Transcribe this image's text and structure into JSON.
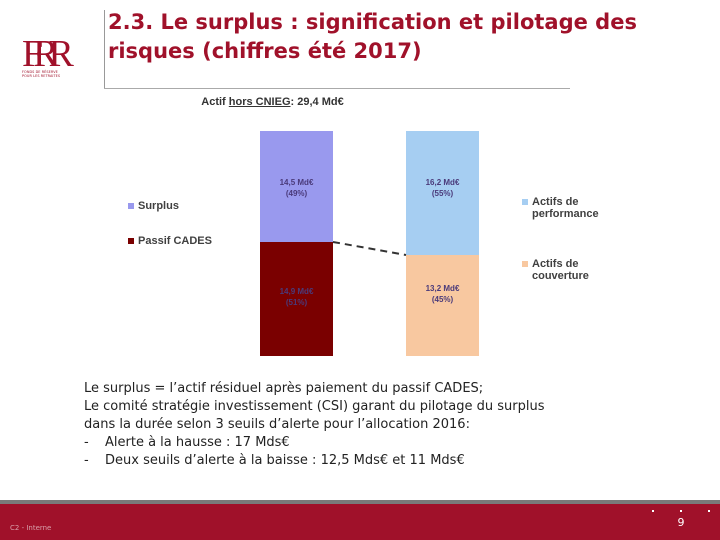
{
  "logo": {
    "letters": "FRR",
    "caption_line1": "FONDS DE RÉSERVE",
    "caption_line2": "POUR LES RETRAITES"
  },
  "slide": {
    "title": "2.3. Le surplus : signification et pilotage des risques (chiffres été 2017)"
  },
  "chart_data": {
    "type": "bar",
    "stacked": true,
    "title_prefix": "Actif ",
    "title_underlined": "hors CNIEG",
    "title_suffix": ": 29,4 Md€",
    "categories": [
      "",
      ""
    ],
    "series": [
      {
        "name": "Passif CADES",
        "color": "#7a0000",
        "category_index": 0,
        "value": 14.9,
        "label_value": "14,9 Md€",
        "label_share": "(51%)"
      },
      {
        "name": "Surplus",
        "color": "#9999ee",
        "category_index": 0,
        "value": 14.5,
        "label_value": "14,5 Md€",
        "label_share": "(49%)"
      },
      {
        "name": "Actifs de couverture",
        "name_line1": "Actifs de",
        "name_line2": "couverture",
        "color": "#f8c8a0",
        "category_index": 1,
        "value": 13.2,
        "label_value": "13,2 Md€",
        "label_share": "(45%)"
      },
      {
        "name": "Actifs de performance",
        "name_line1": "Actifs de",
        "name_line2": "performance",
        "color": "#a6cef2",
        "category_index": 1,
        "value": 16.2,
        "label_value": "16,2 Md€",
        "label_share": "(55%)"
      }
    ],
    "ylim": [
      0,
      29.4
    ],
    "grid": false,
    "connector": "dashed",
    "legend": [
      "left",
      "right"
    ]
  },
  "body": {
    "line1": "Le surplus = l’actif résiduel après paiement du passif CADES;",
    "line2": "Le comité stratégie investissement (CSI) garant du pilotage du surplus",
    "line3": "dans la durée selon 3 seuils d’alerte pour l’allocation 2016:",
    "bullets": [
      {
        "dash": "-",
        "text": "Alerte à la hausse : 17 Mds€"
      },
      {
        "dash": "-",
        "text": "Deux seuils d’alerte à la baisse : 12,5 Mds€ et 11 Mds€"
      }
    ]
  },
  "footer": {
    "label": "C2 - Interne",
    "page_number": "9"
  },
  "colors": {
    "brand": "#a0112a",
    "footer_grey": "#7a7a7a"
  }
}
